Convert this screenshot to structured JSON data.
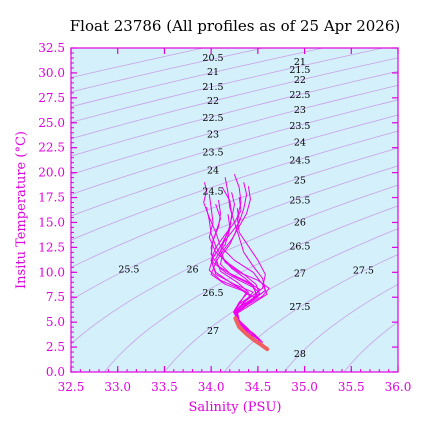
{
  "chart_data": {
    "type": "line",
    "title": "Float 23786  (All profiles as of 25 Apr 2026)",
    "xlabel": "Salinity (PSU)",
    "ylabel": "Insitu Temperature (°C)",
    "xlim": [
      32.5,
      36.0
    ],
    "ylim": [
      0.0,
      32.5
    ],
    "x_ticks": [
      "32.5",
      "33.0",
      "33.5",
      "34.0",
      "34.5",
      "35.0",
      "35.5",
      "36.0"
    ],
    "y_ticks": [
      "0.0",
      "2.5",
      "5.0",
      "7.5",
      "10.0",
      "12.5",
      "15.0",
      "17.5",
      "20.0",
      "22.5",
      "25.0",
      "27.5",
      "30.0",
      "32.5"
    ],
    "grid": false,
    "colors": {
      "background": "#d4f0fa",
      "axes": "#e000e0",
      "profiles": "#ee00ee",
      "latest_profile": "#f06060",
      "isopycnals": "#c8a0e8"
    },
    "isopycnal_labels": [
      {
        "text": "20.5",
        "s": 34.02,
        "t": 31.2
      },
      {
        "text": "21",
        "s": 34.02,
        "t": 29.8
      },
      {
        "text": "21.5",
        "s": 34.02,
        "t": 28.3
      },
      {
        "text": "22",
        "s": 34.02,
        "t": 26.9
      },
      {
        "text": "22.5",
        "s": 34.02,
        "t": 25.2
      },
      {
        "text": "23",
        "s": 34.02,
        "t": 23.5
      },
      {
        "text": "23.5",
        "s": 34.02,
        "t": 21.7
      },
      {
        "text": "24",
        "s": 34.02,
        "t": 19.9
      },
      {
        "text": "24.5",
        "s": 34.02,
        "t": 17.8
      },
      {
        "text": "26",
        "s": 33.8,
        "t": 10.0
      },
      {
        "text": "25.5",
        "s": 33.12,
        "t": 10.0
      },
      {
        "text": "26.5",
        "s": 34.02,
        "t": 7.6
      },
      {
        "text": "27",
        "s": 34.02,
        "t": 3.8
      },
      {
        "text": "21",
        "s": 34.95,
        "t": 30.8
      },
      {
        "text": "21.5",
        "s": 34.95,
        "t": 30.0
      },
      {
        "text": "22",
        "s": 34.95,
        "t": 29.0
      },
      {
        "text": "22.5",
        "s": 34.95,
        "t": 27.5
      },
      {
        "text": "23",
        "s": 34.95,
        "t": 26.0
      },
      {
        "text": "23.5",
        "s": 34.95,
        "t": 24.4
      },
      {
        "text": "24",
        "s": 34.95,
        "t": 22.7
      },
      {
        "text": "24.5",
        "s": 34.95,
        "t": 20.9
      },
      {
        "text": "25",
        "s": 34.95,
        "t": 18.9
      },
      {
        "text": "25.5",
        "s": 34.95,
        "t": 16.9
      },
      {
        "text": "26",
        "s": 34.95,
        "t": 14.7
      },
      {
        "text": "26.5",
        "s": 34.95,
        "t": 12.3
      },
      {
        "text": "27",
        "s": 34.95,
        "t": 9.6
      },
      {
        "text": "27.5",
        "s": 34.95,
        "t": 6.2
      },
      {
        "text": "28",
        "s": 34.95,
        "t": 1.5
      },
      {
        "text": "27.5",
        "s": 35.63,
        "t": 9.9
      }
    ],
    "series": [
      {
        "values": [
          [
            33.93,
            19.0
          ],
          [
            33.95,
            18.2
          ],
          [
            33.92,
            17.0
          ],
          [
            33.98,
            15.5
          ],
          [
            34.05,
            14.0
          ],
          [
            34.0,
            12.5
          ],
          [
            34.02,
            11.0
          ],
          [
            34.15,
            10.0
          ],
          [
            34.3,
            9.2
          ],
          [
            34.45,
            8.5
          ],
          [
            34.5,
            7.5
          ],
          [
            34.35,
            6.8
          ],
          [
            34.25,
            6.0
          ],
          [
            34.3,
            5.0
          ],
          [
            34.4,
            4.0
          ],
          [
            34.5,
            3.0
          ]
        ]
      },
      {
        "values": [
          [
            33.98,
            17.8
          ],
          [
            34.0,
            16.5
          ],
          [
            34.02,
            15.0
          ],
          [
            33.98,
            13.5
          ],
          [
            34.05,
            12.0
          ],
          [
            34.2,
            10.8
          ],
          [
            34.35,
            9.8
          ],
          [
            34.48,
            8.8
          ],
          [
            34.52,
            7.8
          ],
          [
            34.38,
            6.9
          ],
          [
            34.26,
            5.8
          ],
          [
            34.32,
            4.8
          ],
          [
            34.45,
            3.8
          ],
          [
            34.55,
            2.8
          ]
        ]
      },
      {
        "values": [
          [
            34.05,
            16.8
          ],
          [
            34.1,
            15.4
          ],
          [
            34.05,
            14.0
          ],
          [
            34.1,
            12.6
          ],
          [
            34.25,
            11.2
          ],
          [
            34.45,
            10.0
          ],
          [
            34.55,
            8.8
          ],
          [
            34.6,
            7.8
          ],
          [
            34.45,
            6.9
          ],
          [
            34.28,
            5.9
          ],
          [
            34.3,
            4.9
          ],
          [
            34.45,
            3.9
          ],
          [
            34.55,
            3.0
          ]
        ]
      },
      {
        "values": [
          [
            34.15,
            19.5
          ],
          [
            34.18,
            18.0
          ],
          [
            34.2,
            16.5
          ],
          [
            34.25,
            15.0
          ],
          [
            34.3,
            13.5
          ],
          [
            34.35,
            12.0
          ],
          [
            34.45,
            10.6
          ],
          [
            34.55,
            9.4
          ],
          [
            34.58,
            8.2
          ],
          [
            34.42,
            7.0
          ],
          [
            34.27,
            6.0
          ],
          [
            34.3,
            5.0
          ],
          [
            34.42,
            4.0
          ],
          [
            34.52,
            3.2
          ]
        ]
      },
      {
        "values": [
          [
            34.25,
            19.8
          ],
          [
            34.3,
            18.5
          ],
          [
            34.32,
            17.0
          ],
          [
            34.28,
            15.5
          ],
          [
            34.3,
            14.0
          ],
          [
            34.4,
            12.6
          ],
          [
            34.5,
            11.2
          ],
          [
            34.58,
            9.8
          ],
          [
            34.55,
            8.4
          ],
          [
            34.38,
            7.2
          ],
          [
            34.26,
            6.1
          ],
          [
            34.28,
            5.1
          ],
          [
            34.38,
            4.1
          ],
          [
            34.5,
            3.3
          ]
        ]
      },
      {
        "values": [
          [
            34.12,
            18.5
          ],
          [
            34.2,
            17.2
          ],
          [
            34.22,
            15.8
          ],
          [
            34.2,
            14.3
          ],
          [
            34.15,
            12.8
          ],
          [
            34.05,
            11.4
          ],
          [
            34.1,
            10.1
          ],
          [
            34.28,
            9.0
          ],
          [
            34.4,
            8.0
          ],
          [
            34.3,
            7.0
          ],
          [
            34.24,
            6.0
          ],
          [
            34.3,
            5.0
          ],
          [
            34.42,
            4.0
          ]
        ]
      },
      {
        "values": [
          [
            34.22,
            18.0
          ],
          [
            34.25,
            16.8
          ],
          [
            34.22,
            15.5
          ],
          [
            34.18,
            14.0
          ],
          [
            34.1,
            12.6
          ],
          [
            34.0,
            11.2
          ],
          [
            34.05,
            10.0
          ],
          [
            34.22,
            8.9
          ],
          [
            34.38,
            8.0
          ],
          [
            34.32,
            7.1
          ],
          [
            34.25,
            6.2
          ],
          [
            34.28,
            5.2
          ],
          [
            34.4,
            4.2
          ]
        ]
      },
      {
        "values": [
          [
            34.3,
            17.5
          ],
          [
            34.32,
            16.2
          ],
          [
            34.25,
            15.0
          ],
          [
            34.15,
            13.8
          ],
          [
            34.05,
            12.5
          ],
          [
            34.0,
            11.2
          ],
          [
            34.05,
            9.8
          ],
          [
            34.25,
            8.8
          ],
          [
            34.45,
            8.0
          ],
          [
            34.35,
            7.0
          ],
          [
            34.26,
            6.0
          ],
          [
            34.3,
            5.0
          ]
        ]
      },
      {
        "values": [
          [
            34.35,
            19.0
          ],
          [
            34.38,
            17.8
          ],
          [
            34.35,
            16.4
          ],
          [
            34.3,
            15.0
          ],
          [
            34.2,
            13.8
          ],
          [
            34.1,
            12.6
          ],
          [
            34.02,
            11.5
          ],
          [
            33.98,
            10.2
          ],
          [
            34.1,
            9.2
          ],
          [
            34.3,
            8.4
          ],
          [
            34.42,
            7.6
          ],
          [
            34.3,
            6.8
          ],
          [
            34.25,
            6.0
          ]
        ]
      },
      {
        "values": [
          [
            34.4,
            18.6
          ],
          [
            34.42,
            17.3
          ],
          [
            34.38,
            15.9
          ],
          [
            34.3,
            14.6
          ],
          [
            34.22,
            13.3
          ],
          [
            34.12,
            12.1
          ],
          [
            34.05,
            11.0
          ],
          [
            34.0,
            9.8
          ],
          [
            34.15,
            8.8
          ],
          [
            34.35,
            8.1
          ],
          [
            34.48,
            7.4
          ],
          [
            34.35,
            6.6
          ],
          [
            34.26,
            5.8
          ]
        ]
      },
      {
        "values": [
          [
            34.08,
            17.2
          ],
          [
            34.1,
            15.9
          ],
          [
            34.08,
            14.6
          ],
          [
            34.02,
            13.2
          ],
          [
            34.0,
            11.8
          ],
          [
            34.08,
            10.6
          ],
          [
            34.25,
            9.6
          ],
          [
            34.42,
            8.8
          ],
          [
            34.52,
            7.9
          ],
          [
            34.4,
            7.0
          ],
          [
            34.28,
            6.1
          ],
          [
            34.3,
            5.2
          ],
          [
            34.4,
            4.3
          ]
        ]
      },
      {
        "values": [
          [
            33.95,
            16.5
          ],
          [
            33.98,
            15.2
          ],
          [
            34.0,
            13.9
          ],
          [
            34.05,
            12.6
          ],
          [
            34.12,
            11.4
          ],
          [
            34.22,
            10.4
          ],
          [
            34.35,
            9.5
          ],
          [
            34.45,
            8.7
          ],
          [
            34.48,
            7.9
          ],
          [
            34.35,
            7.0
          ],
          [
            34.26,
            6.1
          ],
          [
            34.3,
            5.1
          ]
        ]
      },
      {
        "values": [
          [
            34.18,
            15.8
          ],
          [
            34.2,
            14.6
          ],
          [
            34.15,
            13.4
          ],
          [
            34.1,
            12.2
          ],
          [
            34.15,
            11.0
          ],
          [
            34.3,
            10.0
          ],
          [
            34.5,
            9.2
          ],
          [
            34.62,
            8.4
          ],
          [
            34.55,
            7.6
          ],
          [
            34.4,
            6.8
          ],
          [
            34.28,
            6.0
          ]
        ]
      },
      {
        "values": [
          [
            34.28,
            16.4
          ],
          [
            34.3,
            15.2
          ],
          [
            34.26,
            14.0
          ],
          [
            34.2,
            12.8
          ],
          [
            34.12,
            11.8
          ],
          [
            34.1,
            10.8
          ],
          [
            34.2,
            9.9
          ],
          [
            34.38,
            9.1
          ],
          [
            34.52,
            8.3
          ],
          [
            34.45,
            7.4
          ],
          [
            34.3,
            6.5
          ],
          [
            34.26,
            5.6
          ]
        ]
      },
      {
        "values": [
          [
            34.26,
            5.4
          ],
          [
            34.3,
            4.5
          ],
          [
            34.38,
            3.8
          ],
          [
            34.46,
            3.2
          ],
          [
            34.54,
            2.7
          ],
          [
            34.6,
            2.3
          ]
        ],
        "latest": true
      }
    ]
  }
}
